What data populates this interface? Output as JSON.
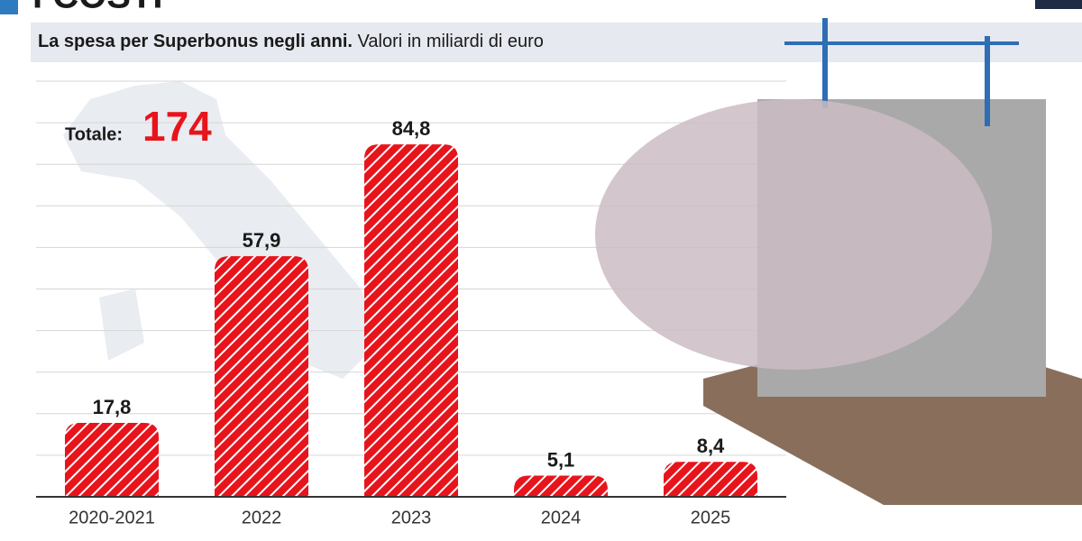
{
  "chart_data": {
    "type": "bar",
    "title": "I COSTI",
    "subtitle": "La spesa per Superbonus negli anni.",
    "unit_note": "Valori in miliardi di euro",
    "total_label": "Totale:",
    "total": 174,
    "categories": [
      "2020-2021",
      "2022",
      "2023",
      "2024",
      "2025"
    ],
    "values": [
      17.8,
      57.9,
      84.8,
      5.1,
      8.4
    ],
    "value_labels": [
      "17,8",
      "57,9",
      "84,8",
      "5,1",
      "8,4"
    ],
    "color": "#e8141c",
    "ylim": [
      0,
      100
    ],
    "yticks": [
      0,
      10,
      20,
      30,
      40,
      50,
      60,
      70,
      80,
      90,
      100
    ],
    "grid": true
  }
}
